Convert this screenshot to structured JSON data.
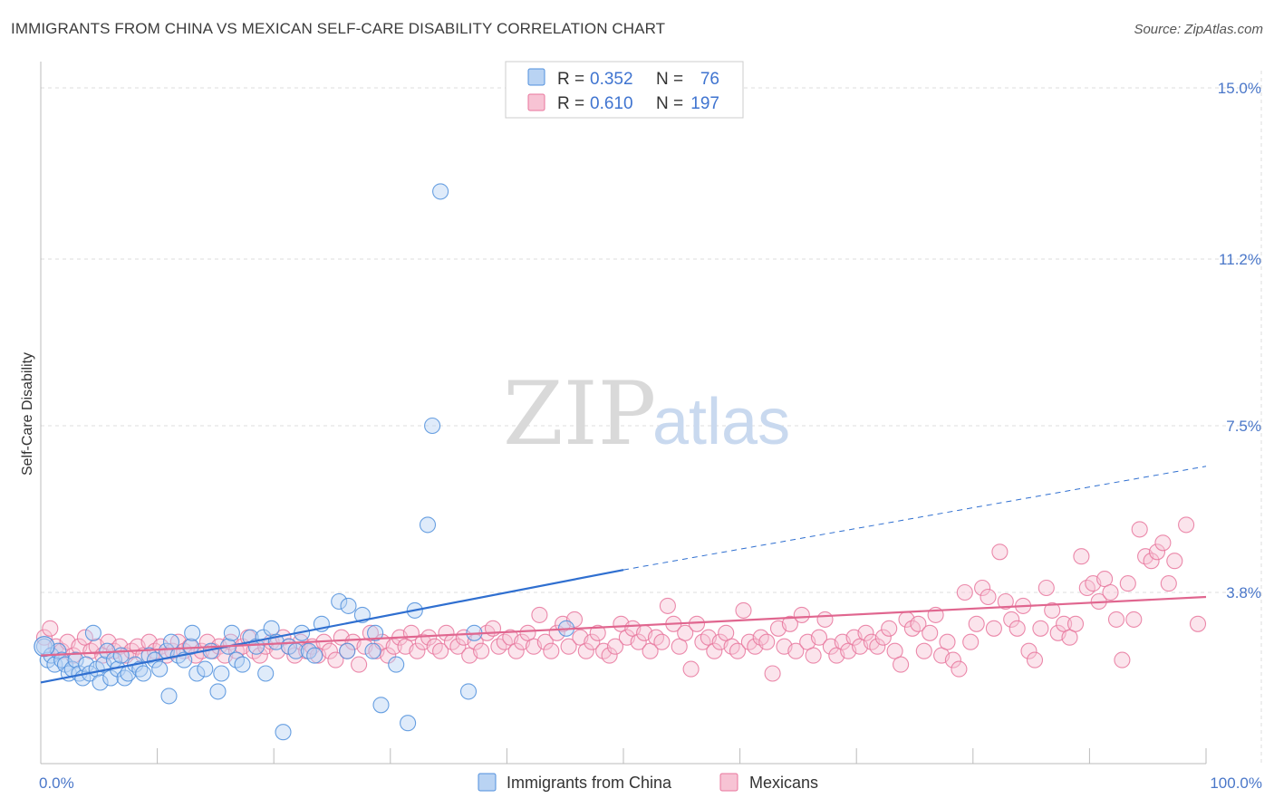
{
  "title": "IMMIGRANTS FROM CHINA VS MEXICAN SELF-CARE DISABILITY CORRELATION CHART",
  "source": "Source: ZipAtlas.com",
  "watermark": {
    "zip": "ZIP",
    "atlas": "atlas"
  },
  "colors": {
    "china": "#4f8fdc",
    "china_fill": "#b9d3f3",
    "mexicans": "#e8759c",
    "mexicans_fill": "#f7c3d4",
    "tick_label": "#4a77c9",
    "grid": "#dddddd"
  },
  "legend": {
    "rows": [
      {
        "r_label": "R = ",
        "r_value": "0.352",
        "n_label": "N = ",
        "n_value": "76"
      },
      {
        "r_label": "R = ",
        "r_value": "0.610",
        "n_label": "N = ",
        "n_value": "197"
      }
    ]
  },
  "chart_data": {
    "type": "scatter",
    "title": "IMMIGRANTS FROM CHINA VS MEXICAN SELF-CARE DISABILITY CORRELATION CHART",
    "xlabel": "",
    "ylabel": "Self-Care Disability",
    "xlim": [
      0,
      100
    ],
    "ylim": [
      0,
      15.0
    ],
    "x_tick_labels": [
      "0.0%",
      "100.0%"
    ],
    "y_ticks": [
      3.8,
      7.5,
      11.2,
      15.0
    ],
    "y_tick_labels": [
      "3.8%",
      "7.5%",
      "11.2%",
      "15.0%"
    ],
    "grid": true,
    "legend_position": "top-center",
    "series": [
      {
        "name": "Immigrants from China",
        "r": 0.352,
        "n": 76,
        "trend": {
          "x0": 0,
          "y0": 1.8,
          "x1": 50,
          "y1": 4.3,
          "dashed_to_x": 100,
          "dashed_to_y": 6.6
        },
        "points": [
          [
            0.3,
            2.6
          ],
          [
            0.6,
            2.3
          ],
          [
            0.9,
            2.4
          ],
          [
            1.2,
            2.2
          ],
          [
            1.5,
            2.5
          ],
          [
            1.8,
            2.3
          ],
          [
            2.1,
            2.2
          ],
          [
            2.4,
            2.0
          ],
          [
            2.7,
            2.1
          ],
          [
            3.0,
            2.3
          ],
          [
            3.3,
            2.0
          ],
          [
            3.6,
            1.9
          ],
          [
            3.9,
            2.2
          ],
          [
            4.2,
            2.0
          ],
          [
            4.5,
            2.9
          ],
          [
            4.8,
            2.1
          ],
          [
            5.1,
            1.8
          ],
          [
            5.4,
            2.2
          ],
          [
            5.7,
            2.5
          ],
          [
            6.0,
            1.9
          ],
          [
            6.3,
            2.3
          ],
          [
            6.6,
            2.1
          ],
          [
            6.9,
            2.4
          ],
          [
            7.2,
            1.9
          ],
          [
            7.5,
            2.0
          ],
          [
            8.1,
            2.2
          ],
          [
            8.5,
            2.1
          ],
          [
            8.8,
            2.0
          ],
          [
            9.3,
            2.4
          ],
          [
            9.8,
            2.3
          ],
          [
            10.2,
            2.1
          ],
          [
            10.8,
            2.5
          ],
          [
            11.2,
            2.7
          ],
          [
            11.0,
            1.5
          ],
          [
            11.8,
            2.4
          ],
          [
            12.3,
            2.3
          ],
          [
            12.9,
            2.6
          ],
          [
            13.4,
            2.0
          ],
          [
            13.0,
            2.9
          ],
          [
            14.1,
            2.1
          ],
          [
            14.6,
            2.5
          ],
          [
            15.2,
            1.6
          ],
          [
            15.5,
            2.0
          ],
          [
            16.1,
            2.6
          ],
          [
            16.4,
            2.9
          ],
          [
            16.8,
            2.3
          ],
          [
            17.3,
            2.2
          ],
          [
            18.0,
            2.8
          ],
          [
            18.5,
            2.6
          ],
          [
            19.1,
            2.8
          ],
          [
            19.3,
            2.0
          ],
          [
            19.8,
            3.0
          ],
          [
            20.2,
            2.7
          ],
          [
            20.8,
            0.7
          ],
          [
            21.3,
            2.6
          ],
          [
            21.9,
            2.5
          ],
          [
            22.4,
            2.9
          ],
          [
            23.0,
            2.5
          ],
          [
            23.5,
            2.4
          ],
          [
            24.1,
            3.1
          ],
          [
            25.6,
            3.6
          ],
          [
            26.3,
            2.5
          ],
          [
            26.4,
            3.5
          ],
          [
            27.6,
            3.3
          ],
          [
            28.5,
            2.5
          ],
          [
            28.7,
            2.9
          ],
          [
            29.2,
            1.3
          ],
          [
            30.5,
            2.2
          ],
          [
            31.5,
            0.9
          ],
          [
            32.1,
            3.4
          ],
          [
            33.2,
            5.3
          ],
          [
            33.6,
            7.5
          ],
          [
            34.3,
            12.7
          ],
          [
            36.7,
            1.6
          ],
          [
            37.2,
            2.9
          ],
          [
            45.1,
            3.0
          ]
        ]
      },
      {
        "name": "Mexicans",
        "r": 0.61,
        "n": 197,
        "trend": {
          "x0": 0,
          "y0": 2.4,
          "x1": 100,
          "y1": 3.7
        },
        "points": [
          [
            0.3,
            2.8
          ],
          [
            0.8,
            3.0
          ],
          [
            1.3,
            2.6
          ],
          [
            1.8,
            2.5
          ],
          [
            2.3,
            2.7
          ],
          [
            2.8,
            2.4
          ],
          [
            3.3,
            2.6
          ],
          [
            3.8,
            2.8
          ],
          [
            4.3,
            2.5
          ],
          [
            4.8,
            2.6
          ],
          [
            5.3,
            2.4
          ],
          [
            5.8,
            2.7
          ],
          [
            6.3,
            2.5
          ],
          [
            6.8,
            2.6
          ],
          [
            7.3,
            2.4
          ],
          [
            7.8,
            2.5
          ],
          [
            8.3,
            2.6
          ],
          [
            8.8,
            2.4
          ],
          [
            9.3,
            2.7
          ],
          [
            9.8,
            2.5
          ],
          [
            10.3,
            2.6
          ],
          [
            10.8,
            2.4
          ],
          [
            11.3,
            2.5
          ],
          [
            11.8,
            2.7
          ],
          [
            12.3,
            2.5
          ],
          [
            12.8,
            2.6
          ],
          [
            13.3,
            2.4
          ],
          [
            13.8,
            2.5
          ],
          [
            14.3,
            2.7
          ],
          [
            14.8,
            2.5
          ],
          [
            15.3,
            2.6
          ],
          [
            15.8,
            2.4
          ],
          [
            16.3,
            2.7
          ],
          [
            16.8,
            2.5
          ],
          [
            17.3,
            2.6
          ],
          [
            17.8,
            2.8
          ],
          [
            18.3,
            2.5
          ],
          [
            18.8,
            2.4
          ],
          [
            19.3,
            2.6
          ],
          [
            19.8,
            2.7
          ],
          [
            20.3,
            2.5
          ],
          [
            20.8,
            2.8
          ],
          [
            21.3,
            2.6
          ],
          [
            21.8,
            2.4
          ],
          [
            22.3,
            2.7
          ],
          [
            22.8,
            2.5
          ],
          [
            23.3,
            2.6
          ],
          [
            23.8,
            2.4
          ],
          [
            24.3,
            2.7
          ],
          [
            24.8,
            2.5
          ],
          [
            25.3,
            2.3
          ],
          [
            25.8,
            2.8
          ],
          [
            26.3,
            2.5
          ],
          [
            26.8,
            2.7
          ],
          [
            27.3,
            2.2
          ],
          [
            27.8,
            2.6
          ],
          [
            28.3,
            2.9
          ],
          [
            28.8,
            2.5
          ],
          [
            29.3,
            2.7
          ],
          [
            29.8,
            2.4
          ],
          [
            30.3,
            2.6
          ],
          [
            30.8,
            2.8
          ],
          [
            31.3,
            2.6
          ],
          [
            31.8,
            2.9
          ],
          [
            32.3,
            2.5
          ],
          [
            32.8,
            2.7
          ],
          [
            33.3,
            2.8
          ],
          [
            33.8,
            2.6
          ],
          [
            34.3,
            2.5
          ],
          [
            34.8,
            2.9
          ],
          [
            35.3,
            2.7
          ],
          [
            35.8,
            2.6
          ],
          [
            36.3,
            2.8
          ],
          [
            36.8,
            2.4
          ],
          [
            37.3,
            2.7
          ],
          [
            37.8,
            2.5
          ],
          [
            38.3,
            2.9
          ],
          [
            38.8,
            3.0
          ],
          [
            39.3,
            2.6
          ],
          [
            39.8,
            2.7
          ],
          [
            40.3,
            2.8
          ],
          [
            40.8,
            2.5
          ],
          [
            41.3,
            2.7
          ],
          [
            41.8,
            2.9
          ],
          [
            42.3,
            2.6
          ],
          [
            42.8,
            3.3
          ],
          [
            43.3,
            2.7
          ],
          [
            43.8,
            2.5
          ],
          [
            44.3,
            2.9
          ],
          [
            44.8,
            3.1
          ],
          [
            45.3,
            2.6
          ],
          [
            45.8,
            3.2
          ],
          [
            46.3,
            2.8
          ],
          [
            46.8,
            2.5
          ],
          [
            47.3,
            2.7
          ],
          [
            47.8,
            2.9
          ],
          [
            48.3,
            2.5
          ],
          [
            48.8,
            2.4
          ],
          [
            49.3,
            2.6
          ],
          [
            49.8,
            3.1
          ],
          [
            50.3,
            2.8
          ],
          [
            50.8,
            3.0
          ],
          [
            51.3,
            2.7
          ],
          [
            51.8,
            2.9
          ],
          [
            52.3,
            2.5
          ],
          [
            52.8,
            2.8
          ],
          [
            53.3,
            2.7
          ],
          [
            53.8,
            3.5
          ],
          [
            54.3,
            3.1
          ],
          [
            54.8,
            2.6
          ],
          [
            55.3,
            2.9
          ],
          [
            55.8,
            2.1
          ],
          [
            56.3,
            3.1
          ],
          [
            56.8,
            2.7
          ],
          [
            57.3,
            2.8
          ],
          [
            57.8,
            2.5
          ],
          [
            58.3,
            2.7
          ],
          [
            58.8,
            2.9
          ],
          [
            59.3,
            2.6
          ],
          [
            59.8,
            2.5
          ],
          [
            60.3,
            3.4
          ],
          [
            60.8,
            2.7
          ],
          [
            61.3,
            2.6
          ],
          [
            61.8,
            2.8
          ],
          [
            62.3,
            2.7
          ],
          [
            62.8,
            2.0
          ],
          [
            63.3,
            3.0
          ],
          [
            63.8,
            2.6
          ],
          [
            64.3,
            3.1
          ],
          [
            64.8,
            2.5
          ],
          [
            65.3,
            3.3
          ],
          [
            65.8,
            2.7
          ],
          [
            66.3,
            2.4
          ],
          [
            66.8,
            2.8
          ],
          [
            67.3,
            3.2
          ],
          [
            67.8,
            2.6
          ],
          [
            68.3,
            2.4
          ],
          [
            68.8,
            2.7
          ],
          [
            69.3,
            2.5
          ],
          [
            69.8,
            2.8
          ],
          [
            70.3,
            2.6
          ],
          [
            70.8,
            2.9
          ],
          [
            71.3,
            2.7
          ],
          [
            71.8,
            2.6
          ],
          [
            72.3,
            2.8
          ],
          [
            72.8,
            3.0
          ],
          [
            73.3,
            2.5
          ],
          [
            73.8,
            2.2
          ],
          [
            74.3,
            3.2
          ],
          [
            74.8,
            3.0
          ],
          [
            75.3,
            3.1
          ],
          [
            75.8,
            2.5
          ],
          [
            76.3,
            2.9
          ],
          [
            76.8,
            3.3
          ],
          [
            77.3,
            2.4
          ],
          [
            77.8,
            2.7
          ],
          [
            78.3,
            2.3
          ],
          [
            78.8,
            2.1
          ],
          [
            79.3,
            3.8
          ],
          [
            79.8,
            2.7
          ],
          [
            80.3,
            3.1
          ],
          [
            80.8,
            3.9
          ],
          [
            81.3,
            3.7
          ],
          [
            81.8,
            3.0
          ],
          [
            82.3,
            4.7
          ],
          [
            82.8,
            3.6
          ],
          [
            83.3,
            3.2
          ],
          [
            83.8,
            3.0
          ],
          [
            84.3,
            3.5
          ],
          [
            84.8,
            2.5
          ],
          [
            85.3,
            2.3
          ],
          [
            85.8,
            3.0
          ],
          [
            86.3,
            3.9
          ],
          [
            86.8,
            3.4
          ],
          [
            87.3,
            2.9
          ],
          [
            87.8,
            3.1
          ],
          [
            88.3,
            2.8
          ],
          [
            88.8,
            3.1
          ],
          [
            89.3,
            4.6
          ],
          [
            89.8,
            3.9
          ],
          [
            90.3,
            4.0
          ],
          [
            90.8,
            3.6
          ],
          [
            91.3,
            4.1
          ],
          [
            91.8,
            3.8
          ],
          [
            92.3,
            3.2
          ],
          [
            92.8,
            2.3
          ],
          [
            93.3,
            4.0
          ],
          [
            93.8,
            3.2
          ],
          [
            94.3,
            5.2
          ],
          [
            94.8,
            4.6
          ],
          [
            95.3,
            4.5
          ],
          [
            95.8,
            4.7
          ],
          [
            96.3,
            4.9
          ],
          [
            96.8,
            4.0
          ],
          [
            97.3,
            4.5
          ],
          [
            98.3,
            5.3
          ],
          [
            99.3,
            3.1
          ]
        ]
      }
    ]
  }
}
